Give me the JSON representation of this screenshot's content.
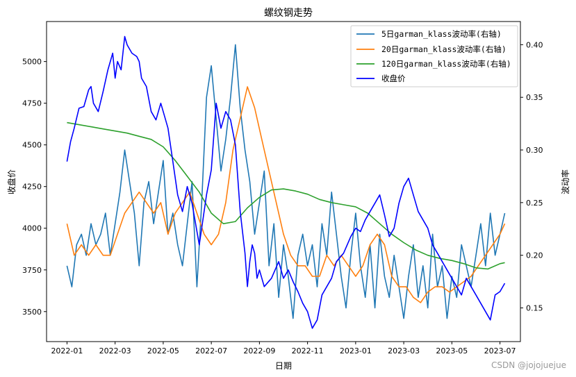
{
  "chart_data": {
    "type": "line",
    "title": "螺纹钢走势",
    "xlabel": "日期",
    "ylabel_left": "收盘价",
    "ylabel_right": "波动率",
    "x_ticks": [
      "2022-01",
      "2022-03",
      "2022-05",
      "2022-07",
      "2022-09",
      "2022-11",
      "2023-01",
      "2023-03",
      "2023-05",
      "2023-07"
    ],
    "y_left_ticks": [
      3500,
      3750,
      4000,
      4250,
      4500,
      4750,
      5000
    ],
    "y_left_tick_labels": [
      "3500",
      "3750",
      "4000",
      "4250",
      "4500",
      "4750",
      "5000"
    ],
    "y_left_lim": [
      3320,
      5240
    ],
    "y_right_ticks": [
      0.15,
      0.2,
      0.25,
      0.3,
      0.35,
      0.4
    ],
    "y_right_tick_labels": [
      "0.15",
      "0.20",
      "0.25",
      "0.30",
      "0.35",
      "0.40"
    ],
    "y_right_lim": [
      0.118,
      0.422
    ],
    "x_lim_month_index": [
      -0.85,
      18.85
    ],
    "legend_position": "top-right",
    "colors": {
      "vol5": "#1f77b4",
      "vol20": "#ff7f0e",
      "vol120": "#2ca02c",
      "close": "#0000ff"
    },
    "legend": [
      {
        "key": "vol5",
        "label": "5日garman_klass波动率(右轴)"
      },
      {
        "key": "vol20",
        "label": "20日garman_klass波动率(右轴)"
      },
      {
        "key": "vol120",
        "label": "120日garman_klass波动率(右轴)"
      },
      {
        "key": "close",
        "label": "收盘价"
      }
    ],
    "series": [
      {
        "key": "close",
        "name": "收盘价",
        "axis": "left",
        "x_month_index": [
          0,
          0.15,
          0.3,
          0.5,
          0.7,
          0.9,
          1.0,
          1.1,
          1.3,
          1.5,
          1.7,
          1.9,
          2.0,
          2.1,
          2.25,
          2.4,
          2.5,
          2.7,
          2.9,
          3.0,
          3.1,
          3.3,
          3.5,
          3.7,
          3.9,
          4.0,
          4.2,
          4.4,
          4.6,
          4.8,
          5.0,
          5.2,
          5.5,
          5.8,
          6.0,
          6.2,
          6.4,
          6.6,
          6.8,
          7.0,
          7.2,
          7.4,
          7.5,
          7.6,
          7.7,
          7.8,
          7.9,
          8.0,
          8.2,
          8.5,
          8.8,
          9.0,
          9.2,
          9.4,
          9.6,
          9.8,
          10.0,
          10.2,
          10.4,
          10.6,
          10.8,
          11.0,
          11.2,
          11.5,
          11.8,
          12.0,
          12.2,
          12.4,
          12.6,
          12.8,
          13.0,
          13.2,
          13.4,
          13.6,
          13.8,
          14.0,
          14.2,
          14.4,
          14.6,
          14.8,
          15.0,
          15.2,
          15.4,
          15.6,
          15.8,
          16.0,
          16.2,
          16.4,
          16.6,
          16.8,
          17.0,
          17.2,
          17.4,
          17.6,
          17.8,
          18.0,
          18.2
        ],
        "values": [
          4400,
          4520,
          4600,
          4720,
          4730,
          4830,
          4850,
          4750,
          4700,
          4820,
          4950,
          5050,
          4900,
          5000,
          4950,
          5150,
          5100,
          5050,
          5030,
          5000,
          4900,
          4850,
          4700,
          4650,
          4750,
          4700,
          4600,
          4400,
          4200,
          4100,
          4250,
          4150,
          3900,
          4200,
          4350,
          4750,
          4600,
          4700,
          4650,
          4500,
          4100,
          3850,
          3650,
          3800,
          3900,
          3850,
          3700,
          3750,
          3650,
          3700,
          3800,
          3700,
          3750,
          3680,
          3620,
          3550,
          3500,
          3400,
          3450,
          3600,
          3650,
          3700,
          3800,
          3850,
          3950,
          4000,
          3980,
          4050,
          4100,
          4150,
          4200,
          4080,
          3950,
          4000,
          4150,
          4250,
          4300,
          4200,
          4100,
          4050,
          4000,
          3900,
          3850,
          3800,
          3750,
          3700,
          3650,
          3600,
          3700,
          3650,
          3600,
          3550,
          3500,
          3450,
          3600,
          3620,
          3670
        ]
      },
      {
        "key": "vol5",
        "name": "5日garman_klass波动率(右轴)",
        "axis": "right",
        "x_month_index": [
          0,
          0.2,
          0.4,
          0.6,
          0.8,
          1.0,
          1.2,
          1.4,
          1.6,
          1.8,
          2.0,
          2.2,
          2.4,
          2.6,
          2.8,
          3.0,
          3.2,
          3.4,
          3.6,
          3.8,
          4.0,
          4.2,
          4.4,
          4.6,
          4.8,
          5.0,
          5.2,
          5.4,
          5.6,
          5.8,
          6.0,
          6.2,
          6.4,
          6.6,
          6.8,
          7.0,
          7.2,
          7.4,
          7.6,
          7.8,
          8.0,
          8.2,
          8.4,
          8.6,
          8.8,
          9.0,
          9.2,
          9.4,
          9.6,
          9.8,
          10.0,
          10.2,
          10.4,
          10.6,
          10.8,
          11.0,
          11.2,
          11.4,
          11.6,
          11.8,
          12.0,
          12.2,
          12.4,
          12.6,
          12.8,
          13.0,
          13.2,
          13.4,
          13.6,
          13.8,
          14.0,
          14.2,
          14.4,
          14.6,
          14.8,
          15.0,
          15.2,
          15.4,
          15.6,
          15.8,
          16.0,
          16.2,
          16.4,
          16.6,
          16.8,
          17.0,
          17.2,
          17.4,
          17.6,
          17.8,
          18.0,
          18.2
        ],
        "values": [
          0.19,
          0.17,
          0.21,
          0.22,
          0.2,
          0.23,
          0.21,
          0.22,
          0.24,
          0.2,
          0.23,
          0.26,
          0.3,
          0.27,
          0.24,
          0.19,
          0.25,
          0.27,
          0.23,
          0.26,
          0.29,
          0.22,
          0.24,
          0.21,
          0.19,
          0.23,
          0.27,
          0.17,
          0.25,
          0.35,
          0.38,
          0.33,
          0.28,
          0.31,
          0.35,
          0.4,
          0.34,
          0.3,
          0.27,
          0.22,
          0.25,
          0.28,
          0.19,
          0.23,
          0.16,
          0.21,
          0.18,
          0.14,
          0.2,
          0.22,
          0.19,
          0.21,
          0.17,
          0.23,
          0.2,
          0.26,
          0.22,
          0.18,
          0.15,
          0.2,
          0.24,
          0.19,
          0.16,
          0.21,
          0.15,
          0.22,
          0.18,
          0.16,
          0.2,
          0.17,
          0.14,
          0.18,
          0.21,
          0.16,
          0.19,
          0.15,
          0.22,
          0.17,
          0.19,
          0.14,
          0.18,
          0.16,
          0.21,
          0.19,
          0.17,
          0.2,
          0.23,
          0.19,
          0.24,
          0.2,
          0.22,
          0.24
        ]
      },
      {
        "key": "vol20",
        "name": "20日garman_klass波动率(右轴)",
        "axis": "right",
        "x_month_index": [
          0,
          0.3,
          0.6,
          0.9,
          1.2,
          1.5,
          1.8,
          2.1,
          2.4,
          2.7,
          3.0,
          3.3,
          3.6,
          3.9,
          4.2,
          4.5,
          4.8,
          5.1,
          5.4,
          5.7,
          6.0,
          6.3,
          6.6,
          6.9,
          7.2,
          7.5,
          7.8,
          8.1,
          8.4,
          8.7,
          9.0,
          9.3,
          9.6,
          9.9,
          10.2,
          10.5,
          10.8,
          11.1,
          11.4,
          11.7,
          12.0,
          12.3,
          12.6,
          12.9,
          13.2,
          13.5,
          13.8,
          14.1,
          14.4,
          14.7,
          15.0,
          15.3,
          15.6,
          15.9,
          16.2,
          16.5,
          16.8,
          17.1,
          17.4,
          17.7,
          18.0,
          18.2
        ],
        "values": [
          0.23,
          0.2,
          0.21,
          0.2,
          0.21,
          0.2,
          0.2,
          0.22,
          0.24,
          0.25,
          0.26,
          0.25,
          0.24,
          0.25,
          0.22,
          0.24,
          0.25,
          0.26,
          0.24,
          0.22,
          0.21,
          0.22,
          0.25,
          0.3,
          0.33,
          0.36,
          0.34,
          0.31,
          0.28,
          0.25,
          0.22,
          0.2,
          0.19,
          0.19,
          0.18,
          0.18,
          0.2,
          0.19,
          0.2,
          0.19,
          0.18,
          0.19,
          0.21,
          0.22,
          0.21,
          0.18,
          0.17,
          0.17,
          0.16,
          0.155,
          0.165,
          0.17,
          0.17,
          0.165,
          0.17,
          0.175,
          0.18,
          0.19,
          0.2,
          0.21,
          0.22,
          0.23
        ]
      },
      {
        "key": "vol120",
        "name": "120日garman_klass波动率(右轴)",
        "axis": "right",
        "x_month_index": [
          0,
          0.5,
          1.0,
          1.5,
          2.0,
          2.5,
          3.0,
          3.5,
          4.0,
          4.5,
          5.0,
          5.5,
          6.0,
          6.5,
          7.0,
          7.5,
          8.0,
          8.5,
          9.0,
          9.5,
          10.0,
          10.5,
          11.0,
          11.5,
          12.0,
          12.5,
          13.0,
          13.5,
          14.0,
          14.5,
          15.0,
          15.5,
          16.0,
          16.5,
          17.0,
          17.5,
          18.0,
          18.2
        ],
        "values": [
          0.326,
          0.324,
          0.322,
          0.32,
          0.318,
          0.316,
          0.313,
          0.31,
          0.303,
          0.29,
          0.275,
          0.26,
          0.24,
          0.23,
          0.232,
          0.245,
          0.255,
          0.262,
          0.263,
          0.261,
          0.258,
          0.253,
          0.25,
          0.248,
          0.246,
          0.24,
          0.23,
          0.22,
          0.212,
          0.205,
          0.2,
          0.197,
          0.195,
          0.192,
          0.188,
          0.187,
          0.192,
          0.193
        ]
      }
    ],
    "watermark": "CSDN @jojojuejue"
  }
}
